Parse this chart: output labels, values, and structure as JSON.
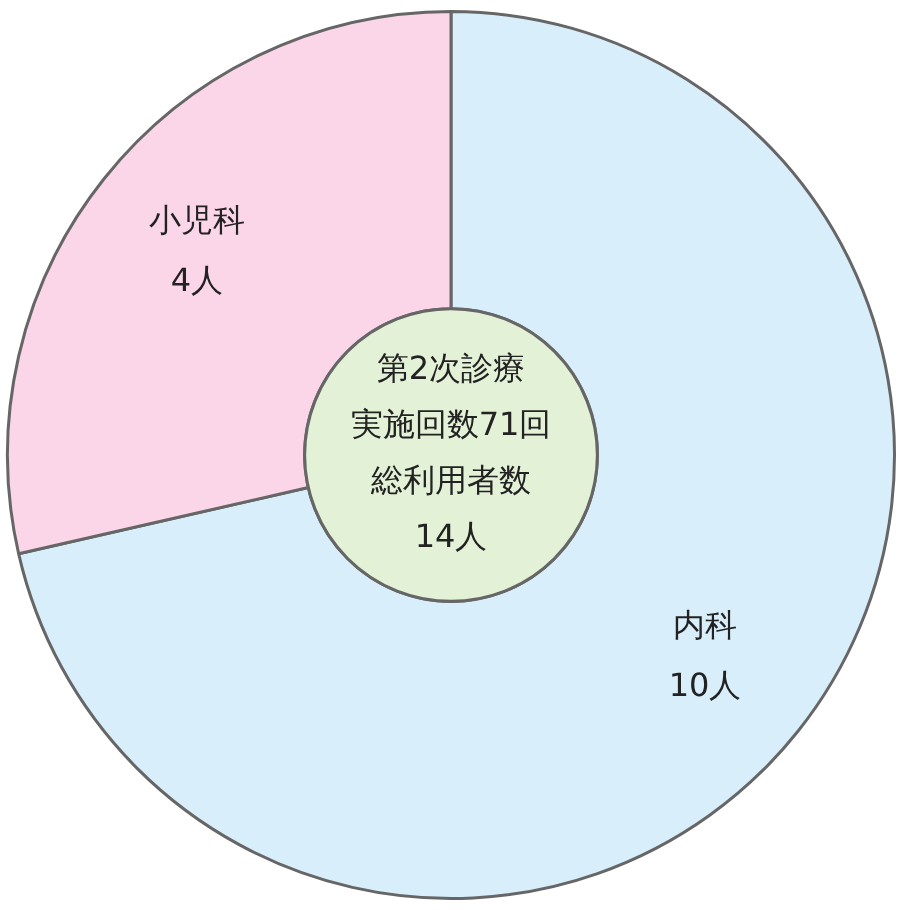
{
  "chart_data": {
    "type": "donut",
    "categories": [
      "内科",
      "小児科"
    ],
    "values": [
      10,
      4
    ],
    "colors": [
      "#d8eefa",
      "#fad6e8"
    ],
    "value_labels": [
      "10人",
      "4人"
    ],
    "annotations": [
      "第2次診療",
      "実施回数71回",
      "総利用者数",
      "14人"
    ],
    "legend": false
  }
}
